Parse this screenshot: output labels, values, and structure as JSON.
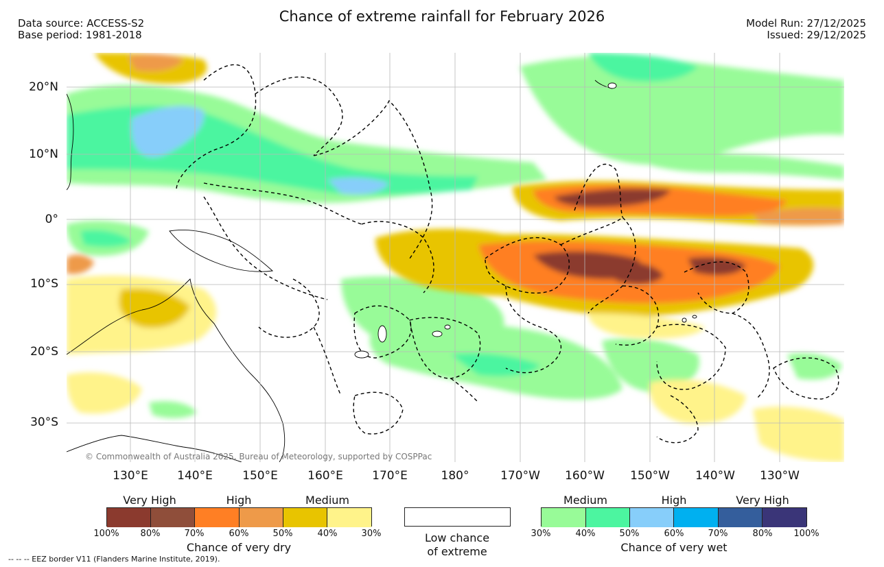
{
  "header": {
    "title": "Chance of extreme rainfall for February 2026",
    "data_source": "Data source: ACCESS-S2",
    "base_period": "Base period: 1981-2018",
    "model_run": "Model Run: 27/12/2025",
    "issued": "Issued: 29/12/2025"
  },
  "map": {
    "lat_labels": [
      "20°N",
      "10°N",
      "0°",
      "10°S",
      "20°S",
      "30°S"
    ],
    "lon_labels": [
      "130°E",
      "140°E",
      "150°E",
      "160°E",
      "170°E",
      "180°",
      "170°W",
      "160°W",
      "150°W",
      "140°W",
      "130°W"
    ],
    "copyright": "© Commonwealth of Australia 2025, Bureau of Meteorology, supported by COSPPac",
    "grid": true
  },
  "legend": {
    "dry": {
      "categories": [
        "Very High",
        "High",
        "Medium"
      ],
      "ticks": [
        "100%",
        "80%",
        "70%",
        "60%",
        "50%",
        "40%",
        "30%"
      ],
      "colors": [
        "#8b3a2e",
        "#8f4e3a",
        "#ff7f24",
        "#ee9a49",
        "#e8c400",
        "#fff38a"
      ],
      "caption": "Chance of very dry"
    },
    "low": {
      "line1": "Low chance",
      "line2": "of extreme"
    },
    "wet": {
      "categories": [
        "Medium",
        "High",
        "Very High"
      ],
      "ticks": [
        "30%",
        "40%",
        "50%",
        "60%",
        "70%",
        "80%",
        "100%"
      ],
      "colors": [
        "#98fb98",
        "#4cf5a0",
        "#87cefa",
        "#00b0f0",
        "#345e9c",
        "#3a3578"
      ],
      "caption": "Chance of very wet"
    },
    "eez_note": "-- -- -- EEZ border V11 (Flanders Marine Institute, 2019)."
  }
}
